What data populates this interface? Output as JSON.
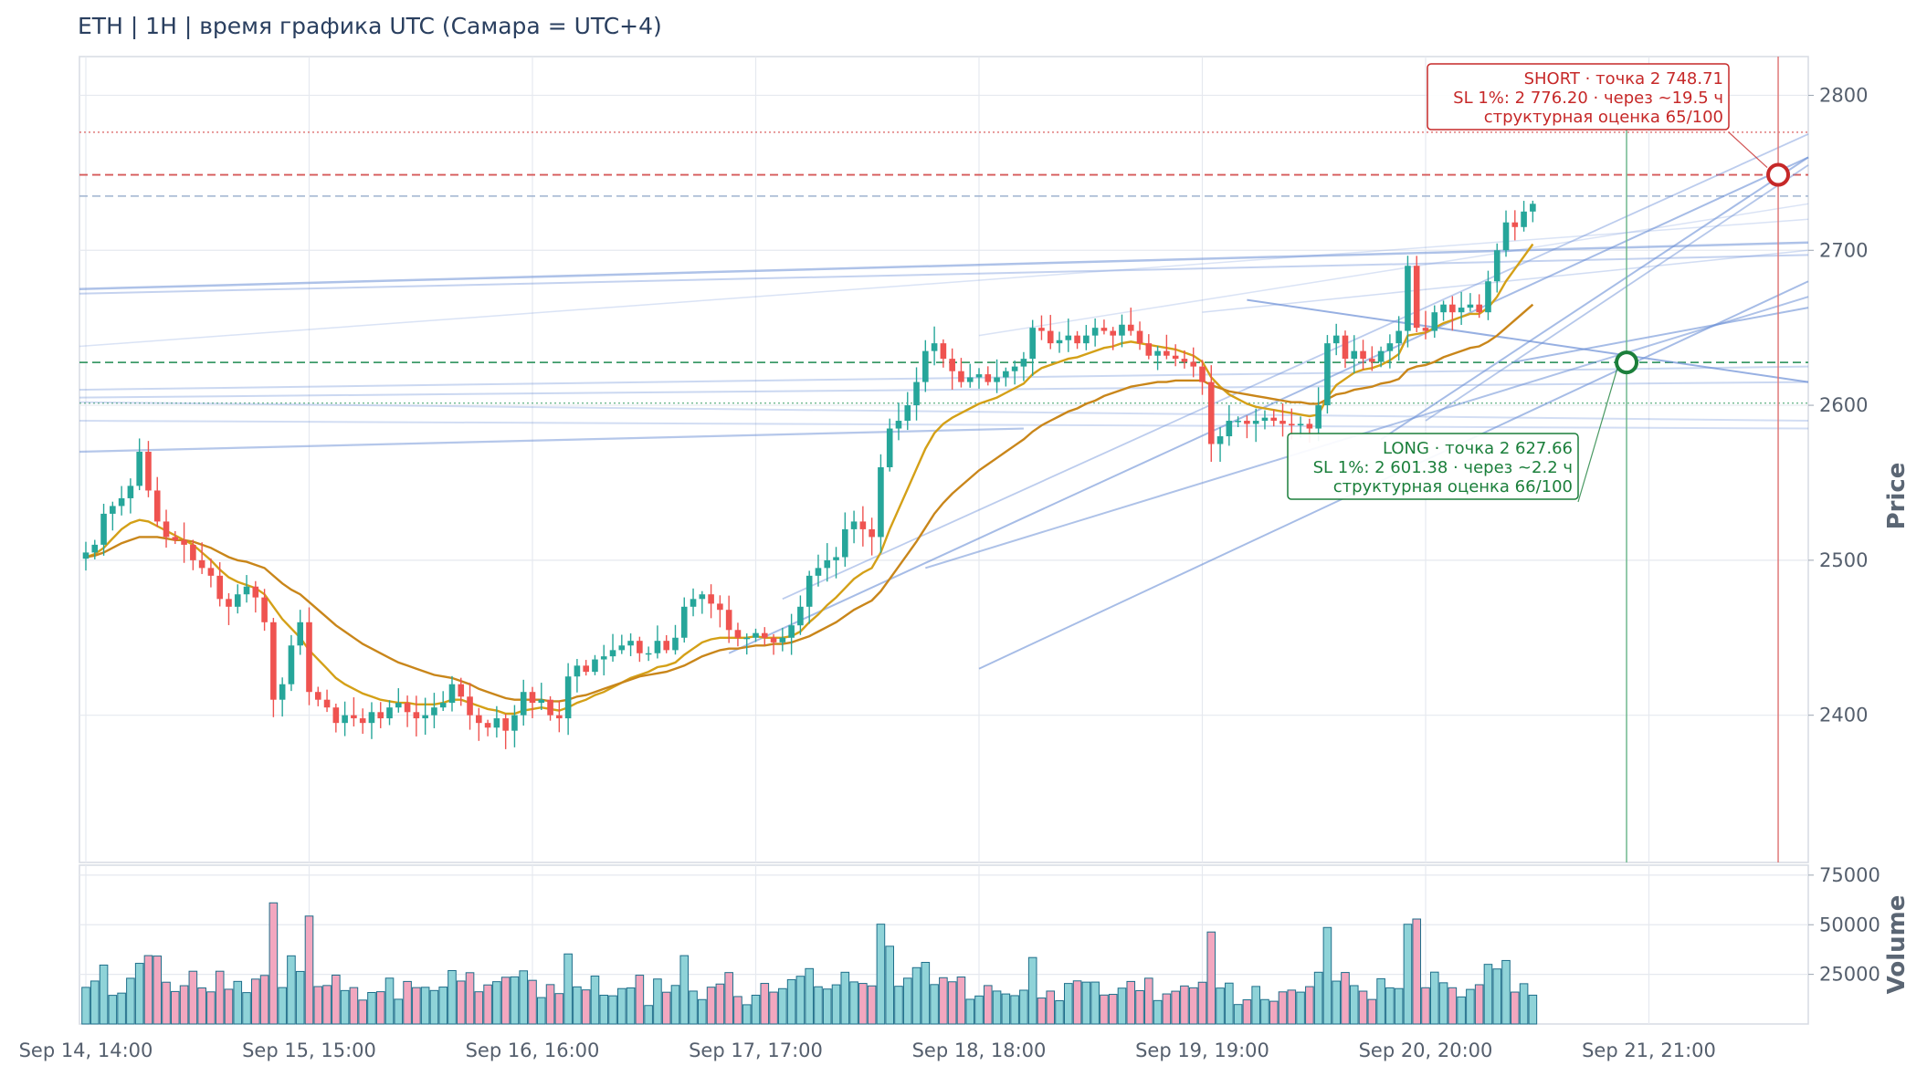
{
  "title": "ETH | 1H | время графика UTC (Самара = UTC+4)",
  "colors": {
    "up": "#26a69a",
    "down": "#ef5350",
    "ema_fast": "#d4a017",
    "ema_slow": "#c9861a",
    "pattern_line": "#6b8fd6",
    "short": "#c62828",
    "long": "#1b7f3b",
    "grid": "#e6e9ef"
  },
  "chart_data": {
    "type": "candlestick",
    "x_axis": {
      "ticks": [
        "Sep 14, 14:00",
        "Sep 15, 15:00",
        "Sep 16, 16:00",
        "Sep 17, 17:00",
        "Sep 18, 18:00",
        "Sep 19, 19:00",
        "Sep 20, 20:00",
        "Sep 21, 21:00"
      ]
    },
    "price_axis": {
      "label": "Price",
      "ticks": [
        2400,
        2500,
        2600,
        2700,
        2800
      ],
      "range": [
        2305,
        2825
      ]
    },
    "volume_axis": {
      "label": "Volume",
      "ticks": [
        25000,
        50000,
        75000
      ],
      "range": [
        0,
        80000
      ]
    },
    "series": [
      {
        "name": "close",
        "values": [
          2505,
          2510,
          2530,
          2535,
          2540,
          2548,
          2570,
          2545,
          2525,
          2515,
          2513,
          2510,
          2500,
          2495,
          2490,
          2475,
          2470,
          2478,
          2483,
          2476,
          2460,
          2410,
          2420,
          2445,
          2460,
          2415,
          2410,
          2405,
          2395,
          2400,
          2398,
          2395,
          2402,
          2398,
          2405,
          2408,
          2402,
          2398,
          2400,
          2405,
          2408,
          2420,
          2412,
          2400,
          2395,
          2392,
          2398,
          2390,
          2400,
          2415,
          2408,
          2410,
          2400,
          2398,
          2425,
          2432,
          2428,
          2436,
          2438,
          2442,
          2445,
          2448,
          2440,
          2440,
          2448,
          2442,
          2450,
          2470,
          2475,
          2478,
          2472,
          2468,
          2455,
          2450,
          2450,
          2453,
          2450,
          2447,
          2450,
          2458,
          2470,
          2490,
          2495,
          2500,
          2502,
          2520,
          2525,
          2520,
          2515,
          2560,
          2585,
          2590,
          2600,
          2615,
          2635,
          2640,
          2630,
          2622,
          2615,
          2618,
          2620,
          2615,
          2618,
          2622,
          2625,
          2630,
          2650,
          2648,
          2640,
          2642,
          2645,
          2640,
          2645,
          2650,
          2648,
          2645,
          2652,
          2648,
          2640,
          2632,
          2635,
          2632,
          2630,
          2628,
          2625,
          2615,
          2575,
          2580,
          2590,
          2590,
          2588,
          2590,
          2592,
          2590,
          2588,
          2587,
          2588,
          2585,
          2600,
          2640,
          2645,
          2630,
          2635,
          2630,
          2628,
          2635,
          2640,
          2648,
          2690,
          2650,
          2648,
          2660,
          2665,
          2660,
          2663,
          2665,
          2660,
          2680,
          2700,
          2718,
          2715,
          2725,
          2730
        ]
      },
      {
        "name": "EMA fast",
        "values": [
          2502,
          2504,
          2508,
          2514,
          2520,
          2524,
          2526,
          2525,
          2522,
          2519,
          2516,
          2513,
          2510,
          2505,
          2500,
          2494,
          2489,
          2486,
          2484,
          2482,
          2478,
          2470,
          2462,
          2456,
          2450,
          2442,
          2436,
          2430,
          2424,
          2420,
          2417,
          2414,
          2412,
          2410,
          2409,
          2408,
          2408,
          2407,
          2407,
          2407,
          2408,
          2410,
          2410,
          2408,
          2406,
          2404,
          2403,
          2401,
          2401,
          2403,
          2404,
          2405,
          2404,
          2403,
          2405,
          2408,
          2410,
          2413,
          2415,
          2418,
          2421,
          2424,
          2426,
          2428,
          2431,
          2432,
          2434,
          2439,
          2443,
          2447,
          2449,
          2450,
          2450,
          2450,
          2450,
          2451,
          2450,
          2450,
          2450,
          2451,
          2454,
          2460,
          2465,
          2471,
          2476,
          2482,
          2488,
          2492,
          2495,
          2505,
          2520,
          2533,
          2546,
          2559,
          2572,
          2582,
          2588,
          2592,
          2595,
          2598,
          2601,
          2603,
          2605,
          2608,
          2611,
          2614,
          2620,
          2624,
          2626,
          2628,
          2630,
          2631,
          2633,
          2635,
          2637,
          2638,
          2640,
          2641,
          2640,
          2639,
          2638,
          2637,
          2636,
          2634,
          2632,
          2628,
          2618,
          2612,
          2607,
          2604,
          2601,
          2599,
          2598,
          2597,
          2596,
          2595,
          2594,
          2593,
          2594,
          2605,
          2613,
          2617,
          2621,
          2623,
          2624,
          2626,
          2629,
          2633,
          2645,
          2646,
          2647,
          2650,
          2653,
          2655,
          2657,
          2659,
          2659,
          2663,
          2670,
          2680,
          2688,
          2696,
          2704
        ]
      },
      {
        "name": "EMA slow",
        "values": [
          2502,
          2503,
          2505,
          2508,
          2511,
          2513,
          2515,
          2515,
          2515,
          2514,
          2513,
          2513,
          2512,
          2510,
          2508,
          2505,
          2502,
          2500,
          2499,
          2497,
          2495,
          2490,
          2485,
          2481,
          2478,
          2473,
          2468,
          2463,
          2458,
          2454,
          2450,
          2446,
          2443,
          2440,
          2437,
          2434,
          2432,
          2430,
          2428,
          2426,
          2425,
          2424,
          2422,
          2420,
          2417,
          2415,
          2413,
          2411,
          2410,
          2410,
          2410,
          2410,
          2409,
          2409,
          2410,
          2412,
          2413,
          2415,
          2417,
          2419,
          2421,
          2423,
          2425,
          2426,
          2427,
          2428,
          2430,
          2432,
          2435,
          2438,
          2440,
          2442,
          2443,
          2443,
          2444,
          2445,
          2445,
          2446,
          2446,
          2447,
          2449,
          2451,
          2454,
          2457,
          2460,
          2464,
          2468,
          2471,
          2474,
          2480,
          2488,
          2496,
          2504,
          2512,
          2521,
          2530,
          2537,
          2543,
          2548,
          2553,
          2558,
          2562,
          2566,
          2570,
          2574,
          2578,
          2583,
          2587,
          2590,
          2593,
          2596,
          2598,
          2601,
          2603,
          2606,
          2608,
          2610,
          2612,
          2613,
          2614,
          2615,
          2615,
          2616,
          2616,
          2616,
          2616,
          2613,
          2611,
          2609,
          2608,
          2607,
          2606,
          2605,
          2604,
          2603,
          2602,
          2602,
          2601,
          2601,
          2604,
          2607,
          2608,
          2610,
          2611,
          2612,
          2614,
          2615,
          2617,
          2623,
          2625,
          2626,
          2628,
          2631,
          2633,
          2635,
          2637,
          2638,
          2641,
          2645,
          2650,
          2655,
          2660,
          2665
        ]
      }
    ],
    "levels": {
      "short_point": 2748.71,
      "short_sl": 2776.2,
      "long_point": 2627.66,
      "long_sl": 2601.38,
      "mid_level": 2735
    }
  },
  "annotations": {
    "short": {
      "line1": "SHORT · точка 2 748.71",
      "line2": "SL 1%: 2 776.20 · через ~19.5 ч",
      "line3": "структурная оценка 65/100"
    },
    "long": {
      "line1": "LONG · точка 2 627.66",
      "line2": "SL 1%: 2 601.38 · через ~2.2 ч",
      "line3": "структурная оценка 66/100"
    }
  }
}
